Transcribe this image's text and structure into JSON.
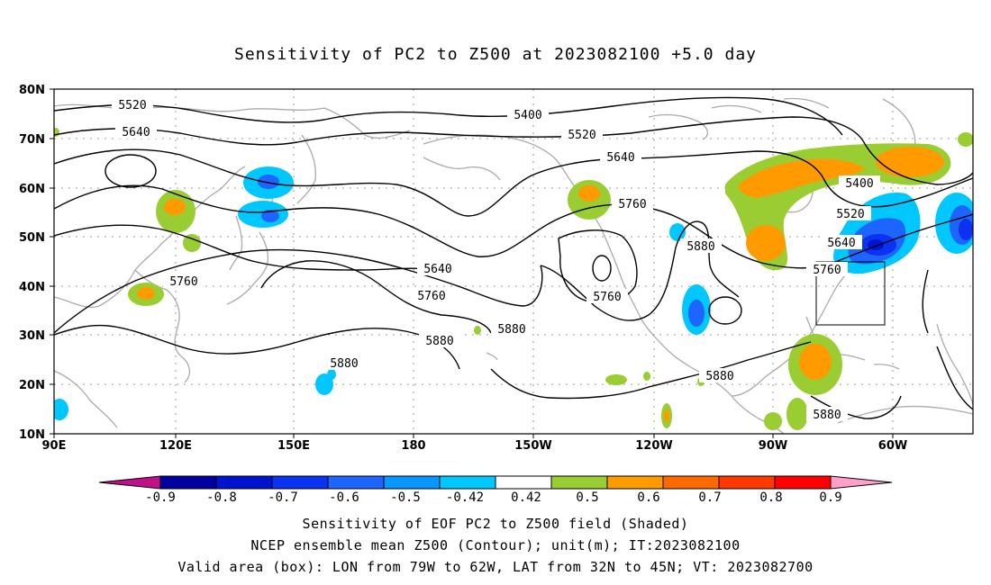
{
  "title": "Sensitivity of PC2 to Z500 at 2023082100 +5.0 day",
  "lat_labels": [
    "80N",
    "70N",
    "60N",
    "50N",
    "40N",
    "30N",
    "20N",
    "10N"
  ],
  "lon_labels": [
    "90E",
    "120E",
    "150E",
    "180",
    "150W",
    "120W",
    "90W",
    "60W"
  ],
  "contour_labels": [
    {
      "id": "c5520a",
      "text": "5520"
    },
    {
      "id": "c5640a",
      "text": "5640"
    },
    {
      "id": "c5400a",
      "text": "5400"
    },
    {
      "id": "c5520b",
      "text": "5520"
    },
    {
      "id": "c5640b",
      "text": "5640"
    },
    {
      "id": "c5760a",
      "text": "5760"
    },
    {
      "id": "c5880a",
      "text": "5880"
    },
    {
      "id": "c5400b",
      "text": "5400"
    },
    {
      "id": "c5520c",
      "text": "5520"
    },
    {
      "id": "c5640c",
      "text": "5640"
    },
    {
      "id": "c5760b",
      "text": "5760"
    },
    {
      "id": "c5760c",
      "text": "5760"
    },
    {
      "id": "c5640d",
      "text": "5640"
    },
    {
      "id": "c5760d",
      "text": "5760"
    },
    {
      "id": "c5760e",
      "text": "5760"
    },
    {
      "id": "c5880b",
      "text": "5880"
    },
    {
      "id": "c5880c",
      "text": "5880"
    },
    {
      "id": "c5880d",
      "text": "5880"
    },
    {
      "id": "c5880e",
      "text": "5880"
    },
    {
      "id": "c5880f",
      "text": "5880"
    }
  ],
  "colorbar": {
    "labels": [
      "-0.9",
      "-0.8",
      "-0.7",
      "-0.6",
      "-0.5",
      "-0.42",
      "0.42",
      "0.5",
      "0.6",
      "0.7",
      "0.8",
      "0.9"
    ],
    "colors": {
      "lower_tip": "#c0108a",
      "bins": [
        "#0000a0",
        "#0014d0",
        "#0a32f0",
        "#1e64ff",
        "#0a96ff",
        "#00c8ff",
        "#ffffff",
        "#9acd32",
        "#ff9a00",
        "#ff6a00",
        "#ff3a00",
        "#ff0000"
      ],
      "upper_tip": "#ffa0c8"
    }
  },
  "valid_box": {
    "lon_from": "79W",
    "lon_to": "62W",
    "lat_from": "32N",
    "lat_to": "45N"
  },
  "captions": {
    "line1": "Sensitivity of EOF PC2 to Z500 field (Shaded)",
    "line2": "NCEP ensemble mean Z500 (Contour); unit(m); IT:2023082100",
    "line3": "Valid area (box): LON from 79W to 62W, LAT from 32N to 45N; VT: 2023082700"
  }
}
